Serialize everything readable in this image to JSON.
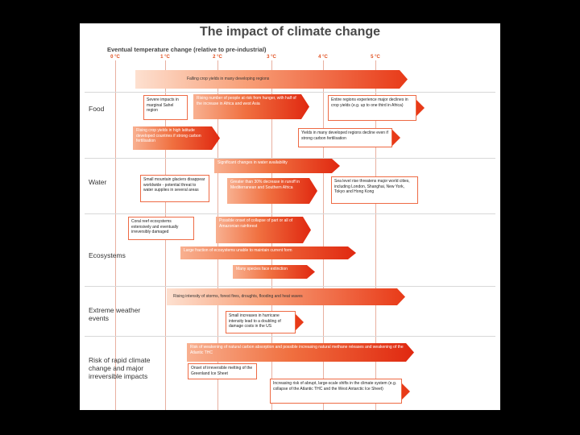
{
  "title": "The impact of climate change",
  "subtitle": "Eventual temperature change (relative to pre-industrial)",
  "ticks": [
    "0 °C",
    "1 °C",
    "2 °C",
    "3 °C",
    "4 °C",
    "5 °C"
  ],
  "categories": {
    "food": "Food",
    "water": "Water",
    "ecosystems": "Ecosystems",
    "weather": "Extreme weather\nevents",
    "risk": "Risk of rapid climate\nchange and major\nirreversible impacts"
  },
  "items": {
    "falling_yields": "Falling crop yields in many developing regions",
    "sahel": "Severe impacts in marginal Sahel region",
    "hunger": "Rising number of people at risk from hunger, with half of the increase in Africa and west Asia",
    "entire_regions": "Entire regions experience major declines in crop yields (e.g. up to one third in Africa)",
    "rising_yields": "Rising crop yields in high latitude developed countries if strong carbon fertilisation",
    "developed_decline": "Yields in many developed regions decline even if strong carbon fertilisation",
    "water_availability": "Significant changes in water availability",
    "glaciers": "Small mountain glaciers disappear worldwide - potential threat to water supplies in several areas",
    "runoff": "Greater than 30% decrease in runoff in Mediterranean and Southern Africa",
    "sea_level": "Sea level rise threatens major world cities, including London, Shanghai, New York, Tokyo and Hong Kong",
    "coral": "Coral reef ecosystems extensively and eventually irreversibly damaged",
    "amazon": "Possible onset of collapse of part or all of Amazonian rainforest",
    "eco_damage": "Large fraction of ecosystems unable to maintain current form",
    "extinction": "Many species face extinction",
    "storms": "Rising intensity of storms, forest fires, droughts, flooding and heat waves",
    "hurricanes": "Small increases in hurricane intensity lead to a doubling of damage costs in the US",
    "carbon": "Risk of weakening of natural carbon absorption and possible increasing natural methane releases and weakening of the Atlantic THC",
    "greenland": "Onset of irreversible melting of the Greenland Ice Sheet",
    "abrupt": "Increasing risk of abrupt, large-scale shifts in the climate system (e.g. collapse of the Atlantic THC and the West Antarctic Ice Sheet)"
  }
}
